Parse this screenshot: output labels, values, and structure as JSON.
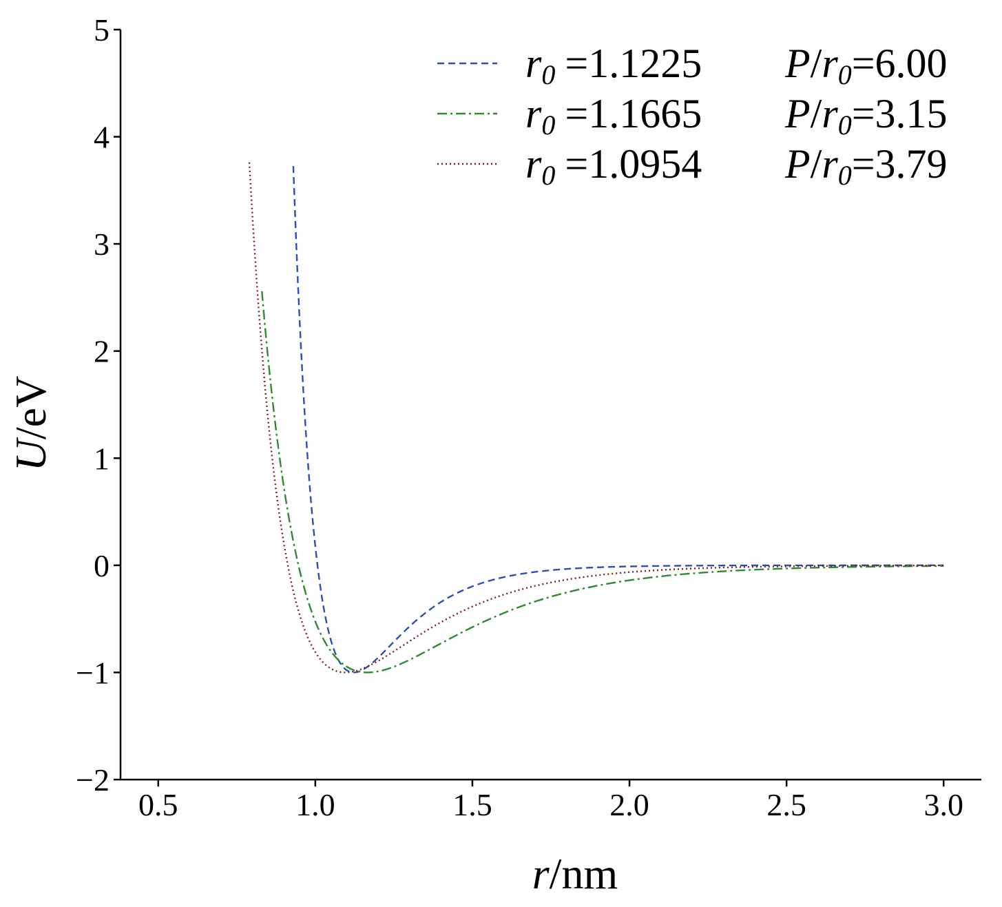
{
  "chart_data": {
    "type": "line",
    "xlabel": {
      "italic": "r",
      "rest": "/nm"
    },
    "ylabel": {
      "italic": "U",
      "rest": "/eV"
    },
    "xlim": [
      0.38,
      3.12
    ],
    "ylim": [
      -2,
      5
    ],
    "xticks": [
      0.5,
      1.0,
      1.5,
      2.0,
      2.5,
      3.0
    ],
    "xtick_labels": [
      "0.5",
      "1.0",
      "1.5",
      "2.0",
      "2.5",
      "3.0"
    ],
    "yticks": [
      -2,
      -1,
      0,
      1,
      2,
      3,
      4,
      5
    ],
    "ytick_labels": [
      "−2",
      "−1",
      "0",
      "1",
      "2",
      "3",
      "4",
      "5"
    ],
    "grid": false,
    "legend_position": "top-right",
    "series": [
      {
        "legend": {
          "r0_symbol": "r",
          "r0_sub": "0",
          "r0_value": "=1.1225",
          "p_symbol": "P",
          "p_sep": "/",
          "p_r_symbol": "r",
          "p_r_sub": "0",
          "p_value": "=6.00"
        },
        "color": "#2a4fb5",
        "dash": "10,6",
        "r0": 1.1225,
        "P_over_r0": 6.0,
        "x_start": 0.93,
        "x_end": 3.0
      },
      {
        "legend": {
          "r0_symbol": "r",
          "r0_sub": "0",
          "r0_value": "=1.1665",
          "p_symbol": "P",
          "p_sep": "/",
          "p_r_symbol": "r",
          "p_r_sub": "0",
          "p_value": "=3.15"
        },
        "color": "#2f8a2f",
        "dash": "14,5,3,5",
        "r0": 1.1665,
        "P_over_r0": 3.15,
        "x_start": 0.83,
        "x_end": 3.0
      },
      {
        "legend": {
          "r0_symbol": "r",
          "r0_sub": "0",
          "r0_value": "=1.0954",
          "p_symbol": "P",
          "p_sep": "/",
          "p_r_symbol": "r",
          "p_r_sub": "0",
          "p_value": "=3.79"
        },
        "color": "#7a1f1f",
        "dash": "2,4",
        "r0": 1.0954,
        "P_over_r0": 3.79,
        "x_start": 0.79,
        "x_end": 3.0
      }
    ]
  }
}
